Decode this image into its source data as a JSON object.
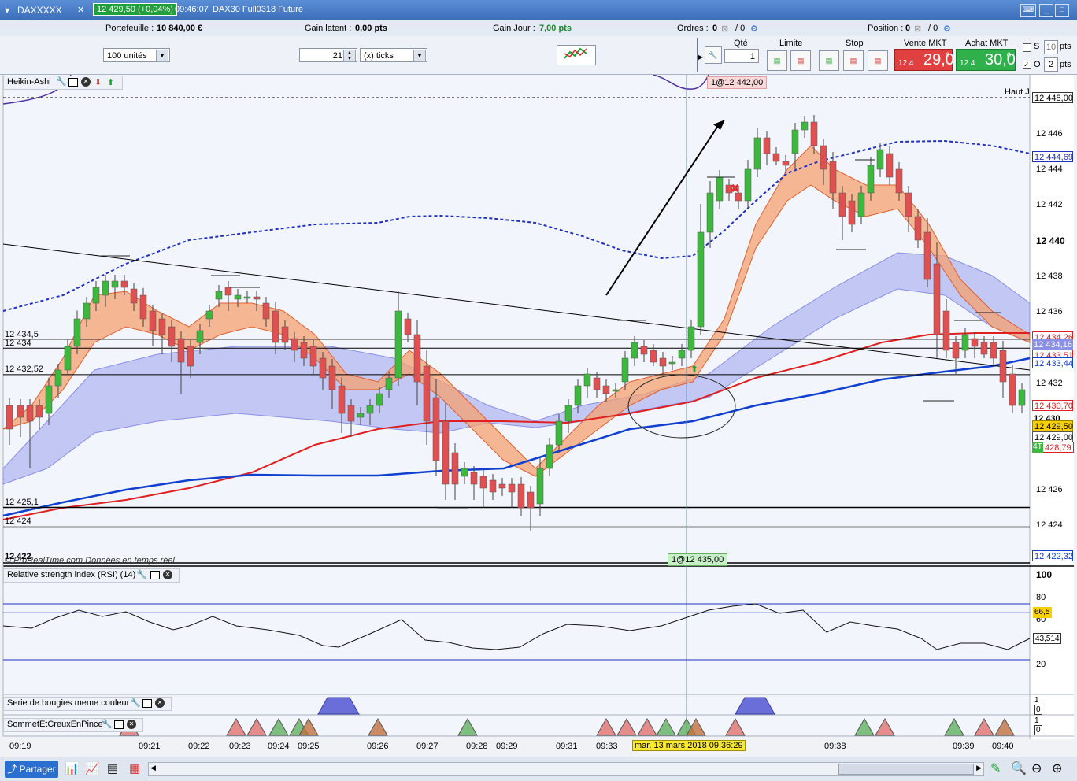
{
  "window": {
    "instrument": "DAXXXXX",
    "last_price": "12 429,50 (+0,04%)",
    "time": "09:46:07",
    "contract": "DAX30 Full0318 Future"
  },
  "infobar": {
    "portefeuille_label": "Portefeuille :",
    "portefeuille_value": "10 840,00 €",
    "gain_latent_label": "Gain latent :",
    "gain_latent_value": "0,00 pts",
    "gain_jour_label": "Gain Jour :",
    "gain_jour_value": "7,00 pts",
    "ordres_label": "Ordres :",
    "ordres_value": "0",
    "ordres_sep": "/ 0",
    "position_label": "Position :",
    "position_value": "0",
    "position_sep": "/ 0"
  },
  "toolbar": {
    "units_select": "100 unités",
    "ticks_value": "21",
    "ticks_unit": "(x) ticks",
    "qty_label": "Qté",
    "qty_value": "1",
    "limit_label": "Limite",
    "stop_label": "Stop",
    "sell_label": "Vente MKT",
    "sell_small": "12 4",
    "sell_big": "29,0",
    "sell_sup": "0",
    "buy_label": "Achat MKT",
    "buy_small": "12 4",
    "buy_big": "30,0",
    "buy_sup": "0",
    "s_value": "10",
    "s_unit": "pts",
    "o_value": "2",
    "o_unit": "pts",
    "s_check": "S",
    "o_check": "O"
  },
  "main_chart": {
    "panel_label": "Heikin-Ashi",
    "order_top": "1@12 442,00",
    "order_bottom": "1@12 435,00",
    "haut_label": "Haut J",
    "watermark": "© ProRealTime.com  Données en temps réel",
    "level_labels": [
      "12 434,5",
      "12 434",
      "12 432,52",
      "12 425,1",
      "12 424",
      "12 422"
    ],
    "price_ticks": [
      "12 446",
      "12 444",
      "12 442",
      "12 440",
      "12 438",
      "12 436",
      "12 432",
      "12 430",
      "12 426",
      "12 424"
    ],
    "price_tags": {
      "t12448": "12 448,00",
      "t12444": "12 444,69",
      "t12434a": "12 434,26",
      "t12434b": "12 434,16",
      "t12433a": "12 433,51",
      "t12433b": "12 433,44",
      "t12430": "12 430,70",
      "t12430b": "12 430",
      "t12429": "12 429,50",
      "t12429b": "12 429,00",
      "t12428": "428,79",
      "t4t": "4T",
      "t12422": "12 422,32"
    }
  },
  "rsi": {
    "panel_label": "Relative strength index (RSI) (14)",
    "ticks": [
      "100",
      "80",
      "60",
      "20"
    ],
    "tag_high": "66,5",
    "tag_cur": "43,514"
  },
  "ind1": {
    "panel_label": "Serie de bougies meme couleur",
    "tick_1": "1",
    "tick_0": "0"
  },
  "ind2": {
    "panel_label": "SommetEtCreuxEnPince",
    "tick_1": "1",
    "tick_0": "0"
  },
  "time_axis": {
    "labels": [
      "09:19",
      "09:21",
      "09:22",
      "09:23",
      "09:24",
      "09:25",
      "09:26",
      "09:27",
      "09:28",
      "09:29",
      "09:31",
      "09:33",
      "09:38",
      "09:39",
      "09:40"
    ],
    "cursor_label": "mar. 13 mars 2018 09:36:29"
  },
  "bottom": {
    "share_label": "Partager"
  },
  "chart_data": {
    "type": "candlestick",
    "title": "DAX30 Full0318 Future",
    "ylim": [
      12422,
      12448
    ],
    "levels": [
      12434.5,
      12434,
      12432.52,
      12425.1,
      12424,
      12422
    ],
    "colors": {
      "up": "#3cb83c",
      "down": "#e05050",
      "band_up": "#f4a070",
      "band_cloud": "#8a90e8",
      "ma_red": "#e02020",
      "ma_blue": "#1040d0",
      "dotted": "#2030c0"
    }
  }
}
